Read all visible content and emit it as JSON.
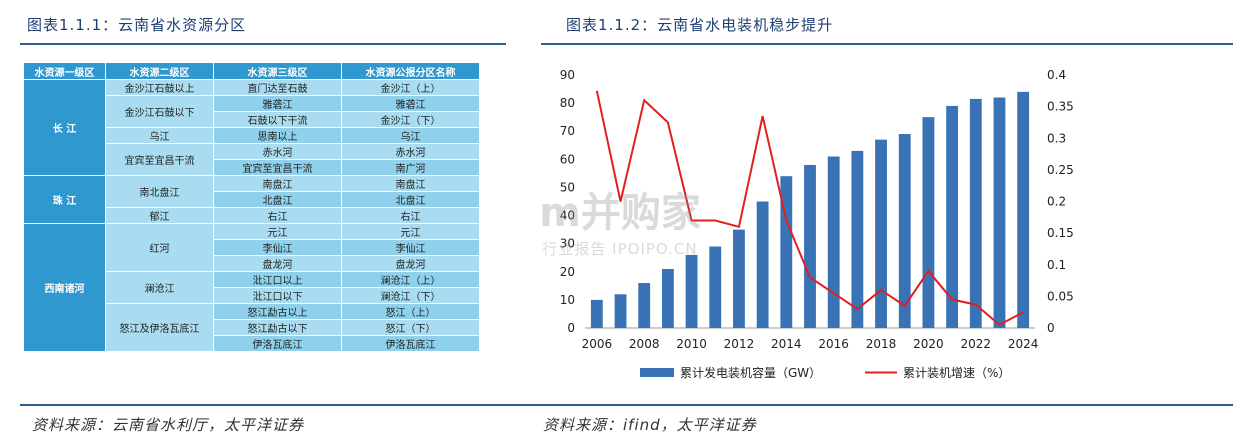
{
  "left": {
    "caption": "图表1.1.1：云南省水资源分区",
    "source": "资料来源：云南省水利厅，太平洋证券",
    "table": {
      "headers": [
        "水资源一级区",
        "水资源二级区",
        "水资源三级区",
        "水资源公报分区名称"
      ],
      "groups": [
        {
          "l1": "长 江",
          "rows": [
            {
              "l2": "金沙江石鼓以上",
              "l3": "直门达至石鼓",
              "name": "金沙江（上）"
            },
            {
              "l2": "金沙江石鼓以下",
              "l3": "雅砻江",
              "name": "雅砻江"
            },
            {
              "l2": "",
              "l3": "石鼓以下干流",
              "name": "金沙江（下）"
            },
            {
              "l2": "乌江",
              "l3": "思南以上",
              "name": "乌江"
            },
            {
              "l2": "宜宾至宜昌干流",
              "l3": "赤水河",
              "name": "赤水河"
            },
            {
              "l2": "",
              "l3": "宜宾至宜昌干流",
              "name": "南广河"
            }
          ]
        },
        {
          "l1": "珠 江",
          "rows": [
            {
              "l2": "南北盘江",
              "l3": "南盘江",
              "name": "南盘江"
            },
            {
              "l2": "",
              "l3": "北盘江",
              "name": "北盘江"
            },
            {
              "l2": "郁江",
              "l3": "右江",
              "name": "右江"
            }
          ]
        },
        {
          "l1": "西南诸河",
          "rows": [
            {
              "l2": "红河",
              "l3": "元江",
              "name": "元江"
            },
            {
              "l2": "",
              "l3": "李仙江",
              "name": "李仙江"
            },
            {
              "l2": "",
              "l3": "盘龙河",
              "name": "盘龙河"
            },
            {
              "l2": "澜沧江",
              "l3": "沘江口以上",
              "name": "澜沧江（上）"
            },
            {
              "l2": "",
              "l3": "沘江口以下",
              "name": "澜沧江（下）"
            },
            {
              "l2": "怒江及伊洛瓦底江",
              "l3": "怒江勐古以上",
              "name": "怒江（上）"
            },
            {
              "l2": "",
              "l3": "怒江勐古以下",
              "name": "怒江（下）"
            },
            {
              "l2": "",
              "l3": "伊洛瓦底江",
              "name": "伊洛瓦底江"
            }
          ]
        }
      ]
    }
  },
  "right": {
    "caption": "图表1.1.2：云南省水电装机稳步提升",
    "source": "资料来源：ifind，太平洋证券"
  },
  "watermark": {
    "big": "m并购家",
    "small": "行业报告 IPOIPO.CN"
  },
  "chart_data": {
    "type": "bar",
    "x": [
      2006,
      2007,
      2008,
      2009,
      2010,
      2011,
      2012,
      2013,
      2014,
      2015,
      2016,
      2017,
      2018,
      2019,
      2020,
      2021,
      2022,
      2023,
      2024
    ],
    "x_ticks": [
      "2006",
      "2008",
      "2010",
      "2012",
      "2014",
      "2016",
      "2018",
      "2020",
      "2022",
      "2024"
    ],
    "series": [
      {
        "name": "累计发电装机容量（GW）",
        "kind": "bar",
        "axis": "left",
        "color": "#3a73b5",
        "values": [
          10,
          12,
          16,
          21,
          26,
          29,
          35,
          45,
          54,
          58,
          61,
          63,
          67,
          69,
          75,
          79,
          81.5,
          82,
          84
        ]
      },
      {
        "name": "累计装机增速（%）",
        "kind": "line",
        "axis": "right",
        "color": "#e02020",
        "values": [
          0.375,
          0.2,
          0.36,
          0.325,
          0.17,
          0.17,
          0.16,
          0.335,
          0.17,
          0.08,
          0.055,
          0.03,
          0.06,
          0.035,
          0.09,
          0.045,
          0.037,
          0.005,
          0.025
        ]
      }
    ],
    "y_left": {
      "ticks": [
        0,
        10,
        20,
        30,
        40,
        50,
        60,
        70,
        80,
        90
      ],
      "ylim": [
        0,
        90
      ]
    },
    "y_right": {
      "ticks": [
        "0",
        "0.05",
        "0.1",
        "0.15",
        "0.2",
        "0.25",
        "0.3",
        "0.35",
        "0.4"
      ],
      "ylim": [
        0,
        0.4
      ]
    },
    "grid": false,
    "legend_position": "bottom"
  }
}
